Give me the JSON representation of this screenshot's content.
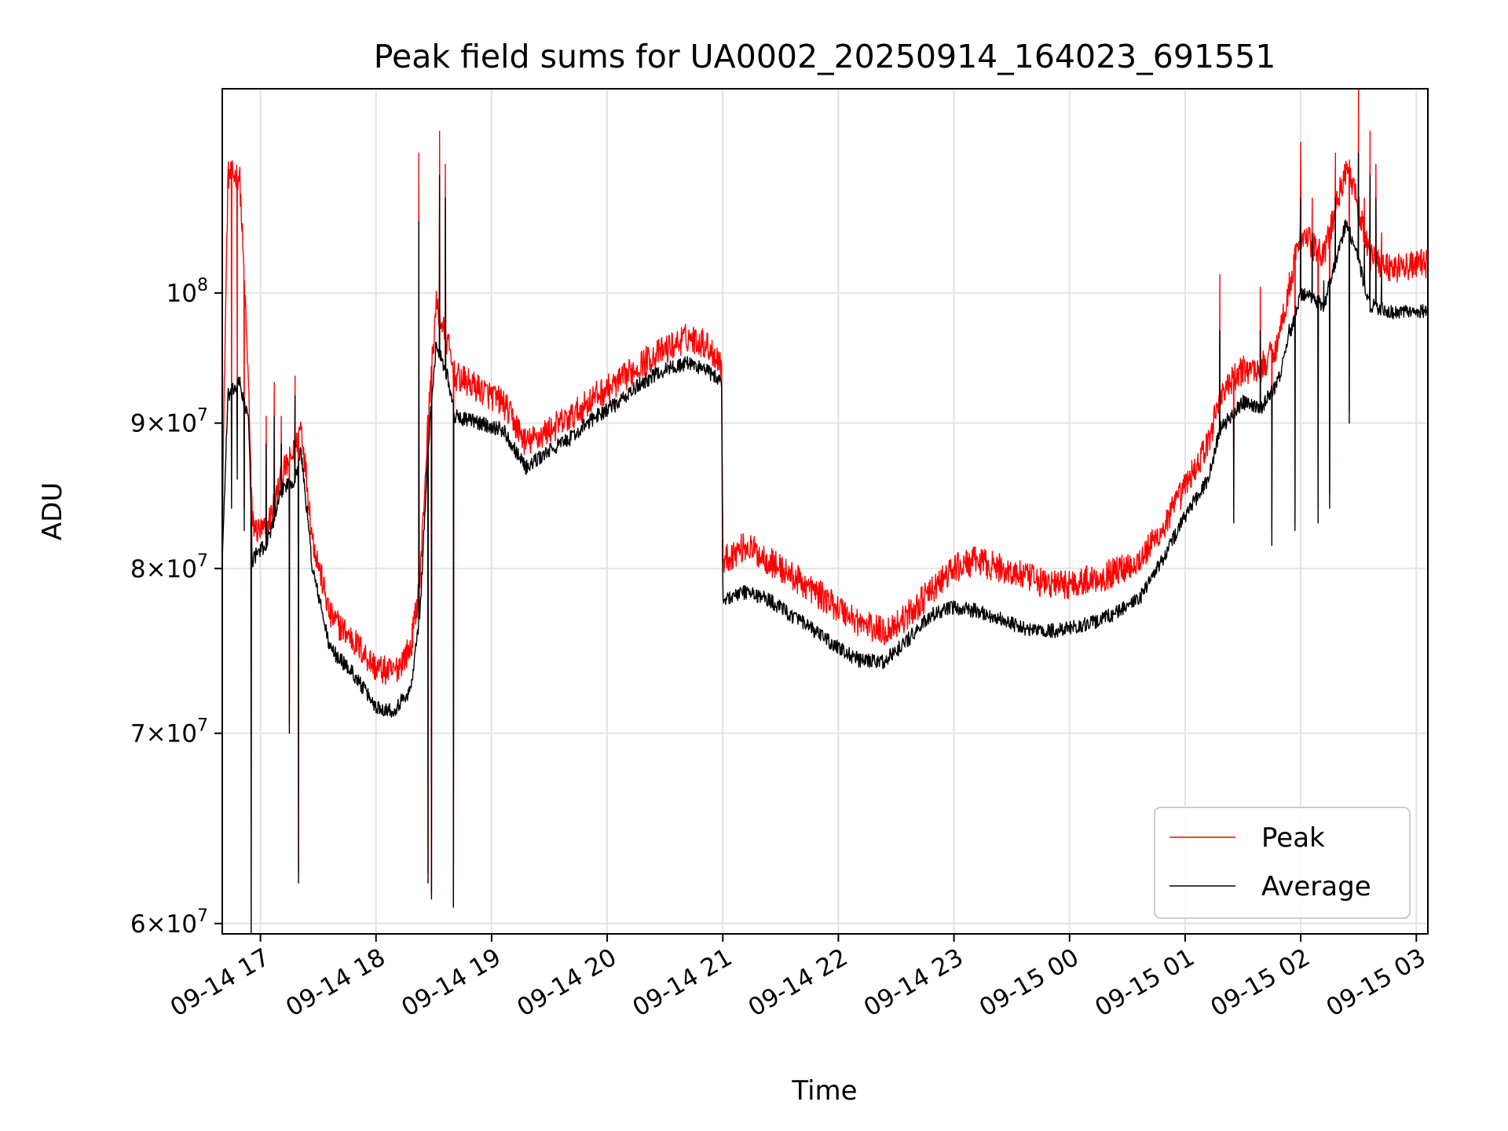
{
  "chart_data": {
    "type": "line",
    "title": "Peak field sums for UA0002_20250914_164023_691551",
    "xlabel": "Time",
    "ylabel": "ADU",
    "yscale": "log",
    "ylim": [
      59500000,
      118000000
    ],
    "xlim_hours": [
      16.67,
      27.1
    ],
    "grid": true,
    "legend_position": "lower-right",
    "x_ticks": [
      {
        "hour": 17,
        "label": "09-14 17"
      },
      {
        "hour": 18,
        "label": "09-14 18"
      },
      {
        "hour": 19,
        "label": "09-14 19"
      },
      {
        "hour": 20,
        "label": "09-14 20"
      },
      {
        "hour": 21,
        "label": "09-14 21"
      },
      {
        "hour": 22,
        "label": "09-14 22"
      },
      {
        "hour": 23,
        "label": "09-14 23"
      },
      {
        "hour": 24,
        "label": "09-15 00"
      },
      {
        "hour": 25,
        "label": "09-15 01"
      },
      {
        "hour": 26,
        "label": "09-15 02"
      },
      {
        "hour": 27,
        "label": "09-15 03"
      }
    ],
    "y_ticks": [
      {
        "value": 60000000,
        "mantissa": "6",
        "exponent": "7"
      },
      {
        "value": 70000000,
        "mantissa": "7",
        "exponent": "7"
      },
      {
        "value": 80000000,
        "mantissa": "8",
        "exponent": "7"
      },
      {
        "value": 90000000,
        "mantissa": "9",
        "exponent": "7"
      },
      {
        "value": 100000000,
        "mantissa": "10",
        "exponent": "8"
      }
    ],
    "series": [
      {
        "name": "Peak",
        "color": "#ff0000",
        "noise_fraction": 0.012,
        "points": [
          [
            16.67,
            83.0
          ],
          [
            16.72,
            110.0
          ],
          [
            16.82,
            110.0
          ],
          [
            16.9,
            92.0
          ],
          [
            16.93,
            83.0
          ],
          [
            16.97,
            82.5
          ],
          [
            17.05,
            82.5
          ],
          [
            17.2,
            86.5
          ],
          [
            17.3,
            88.0
          ],
          [
            17.35,
            90.0
          ],
          [
            17.45,
            82.0
          ],
          [
            17.6,
            77.0
          ],
          [
            17.8,
            75.5
          ],
          [
            18.0,
            73.8
          ],
          [
            18.15,
            73.5
          ],
          [
            18.3,
            75.0
          ],
          [
            18.38,
            79.0
          ],
          [
            18.45,
            90.0
          ],
          [
            18.52,
            99.0
          ],
          [
            18.62,
            96.0
          ],
          [
            18.68,
            93.5
          ],
          [
            18.9,
            92.5
          ],
          [
            19.1,
            91.5
          ],
          [
            19.3,
            88.5
          ],
          [
            19.5,
            89.5
          ],
          [
            19.7,
            90.5
          ],
          [
            19.9,
            92.0
          ],
          [
            20.1,
            93.0
          ],
          [
            20.3,
            94.5
          ],
          [
            20.5,
            95.5
          ],
          [
            20.7,
            96.5
          ],
          [
            20.85,
            96.0
          ],
          [
            20.99,
            94.5
          ],
          [
            21.0,
            80.5
          ],
          [
            21.2,
            81.5
          ],
          [
            21.4,
            80.5
          ],
          [
            21.6,
            79.5
          ],
          [
            21.8,
            78.5
          ],
          [
            22.0,
            77.5
          ],
          [
            22.2,
            76.5
          ],
          [
            22.4,
            76.0
          ],
          [
            22.6,
            77.0
          ],
          [
            22.8,
            78.5
          ],
          [
            23.0,
            80.0
          ],
          [
            23.2,
            80.5
          ],
          [
            23.4,
            80.0
          ],
          [
            23.6,
            79.5
          ],
          [
            23.8,
            79.0
          ],
          [
            24.0,
            79.0
          ],
          [
            24.3,
            79.5
          ],
          [
            24.6,
            80.5
          ],
          [
            24.8,
            82.5
          ],
          [
            25.0,
            85.5
          ],
          [
            25.2,
            88.5
          ],
          [
            25.3,
            92.0
          ],
          [
            25.5,
            94.0
          ],
          [
            25.65,
            94.0
          ],
          [
            25.8,
            96.0
          ],
          [
            26.0,
            105.0
          ],
          [
            26.2,
            103.0
          ],
          [
            26.4,
            111.0
          ],
          [
            26.6,
            103.0
          ],
          [
            26.8,
            102.0
          ],
          [
            27.1,
            102.5
          ]
        ],
        "spikes": [
          [
            16.75,
            86.0
          ],
          [
            16.8,
            90.0
          ],
          [
            16.86,
            84.0
          ],
          [
            16.92,
            59.5
          ],
          [
            17.05,
            90.5
          ],
          [
            17.12,
            93.0
          ],
          [
            17.18,
            90.5
          ],
          [
            17.25,
            70.5
          ],
          [
            17.3,
            93.5
          ],
          [
            17.33,
            62.5
          ],
          [
            18.37,
            112.0
          ],
          [
            18.45,
            62.5
          ],
          [
            18.48,
            61.5
          ],
          [
            18.55,
            114.0
          ],
          [
            18.6,
            111.0
          ],
          [
            18.67,
            60.8
          ],
          [
            25.3,
            101.5
          ],
          [
            25.42,
            84.0
          ],
          [
            25.65,
            100.5
          ],
          [
            25.75,
            82.5
          ],
          [
            25.9,
            101.0
          ],
          [
            25.95,
            83.0
          ],
          [
            26.0,
            113.0
          ],
          [
            26.1,
            108.0
          ],
          [
            26.15,
            84.0
          ],
          [
            26.2,
            104.0
          ],
          [
            26.25,
            85.0
          ],
          [
            26.3,
            112.0
          ],
          [
            26.38,
            111.0
          ],
          [
            26.42,
            91.0
          ],
          [
            26.5,
            118.0
          ],
          [
            26.55,
            108.0
          ],
          [
            26.6,
            114.0
          ],
          [
            26.65,
            111.0
          ],
          [
            26.7,
            105.0
          ]
        ]
      },
      {
        "name": "Average",
        "color": "#000000",
        "noise_fraction": 0.006,
        "points": [
          [
            16.67,
            80.5
          ],
          [
            16.72,
            92.0
          ],
          [
            16.82,
            93.0
          ],
          [
            16.9,
            90.0
          ],
          [
            16.93,
            80.5
          ],
          [
            16.97,
            81.0
          ],
          [
            17.05,
            81.5
          ],
          [
            17.2,
            85.5
          ],
          [
            17.3,
            86.0
          ],
          [
            17.35,
            88.0
          ],
          [
            17.45,
            80.0
          ],
          [
            17.6,
            75.0
          ],
          [
            17.8,
            73.5
          ],
          [
            18.0,
            71.5
          ],
          [
            18.15,
            71.3
          ],
          [
            18.3,
            72.5
          ],
          [
            18.38,
            77.0
          ],
          [
            18.45,
            88.0
          ],
          [
            18.52,
            96.0
          ],
          [
            18.62,
            93.5
          ],
          [
            18.68,
            90.5
          ],
          [
            18.9,
            90.0
          ],
          [
            19.1,
            89.5
          ],
          [
            19.3,
            86.8
          ],
          [
            19.5,
            88.0
          ],
          [
            19.7,
            89.0
          ],
          [
            19.9,
            90.5
          ],
          [
            20.1,
            91.5
          ],
          [
            20.3,
            93.0
          ],
          [
            20.5,
            94.0
          ],
          [
            20.7,
            94.5
          ],
          [
            20.85,
            94.0
          ],
          [
            20.99,
            93.0
          ],
          [
            21.0,
            78.0
          ],
          [
            21.2,
            78.5
          ],
          [
            21.4,
            78.0
          ],
          [
            21.6,
            77.0
          ],
          [
            21.8,
            76.0
          ],
          [
            22.0,
            75.0
          ],
          [
            22.2,
            74.2
          ],
          [
            22.4,
            74.2
          ],
          [
            22.6,
            75.5
          ],
          [
            22.8,
            77.0
          ],
          [
            23.0,
            77.5
          ],
          [
            23.2,
            77.3
          ],
          [
            23.4,
            76.8
          ],
          [
            23.6,
            76.2
          ],
          [
            23.8,
            76.0
          ],
          [
            24.0,
            76.2
          ],
          [
            24.3,
            76.8
          ],
          [
            24.6,
            78.0
          ],
          [
            24.8,
            80.5
          ],
          [
            25.0,
            83.5
          ],
          [
            25.2,
            86.0
          ],
          [
            25.3,
            89.5
          ],
          [
            25.5,
            91.5
          ],
          [
            25.65,
            91.0
          ],
          [
            25.8,
            93.0
          ],
          [
            26.0,
            100.0
          ],
          [
            26.2,
            99.0
          ],
          [
            26.4,
            106.0
          ],
          [
            26.6,
            99.0
          ],
          [
            26.8,
            98.5
          ],
          [
            27.1,
            98.5
          ]
        ],
        "spikes": [
          [
            16.75,
            84.0
          ],
          [
            16.8,
            86.0
          ],
          [
            16.86,
            82.5
          ],
          [
            16.92,
            59.5
          ],
          [
            17.05,
            88.5
          ],
          [
            17.12,
            90.5
          ],
          [
            17.18,
            88.5
          ],
          [
            17.25,
            70.0
          ],
          [
            17.3,
            92.0
          ],
          [
            17.33,
            62.0
          ],
          [
            18.37,
            106.0
          ],
          [
            18.45,
            62.0
          ],
          [
            18.48,
            61.2
          ],
          [
            18.55,
            110.0
          ],
          [
            18.6,
            108.0
          ],
          [
            18.67,
            60.8
          ],
          [
            25.3,
            97.0
          ],
          [
            25.42,
            83.0
          ],
          [
            25.65,
            97.0
          ],
          [
            25.75,
            81.5
          ],
          [
            25.9,
            97.5
          ],
          [
            25.95,
            82.5
          ],
          [
            26.0,
            108.0
          ],
          [
            26.1,
            105.0
          ],
          [
            26.15,
            83.0
          ],
          [
            26.2,
            101.0
          ],
          [
            26.25,
            84.0
          ],
          [
            26.3,
            108.0
          ],
          [
            26.38,
            106.0
          ],
          [
            26.42,
            90.0
          ],
          [
            26.5,
            112.0
          ],
          [
            26.55,
            104.0
          ],
          [
            26.6,
            110.0
          ],
          [
            26.65,
            108.0
          ],
          [
            26.7,
            102.0
          ]
        ]
      }
    ]
  }
}
